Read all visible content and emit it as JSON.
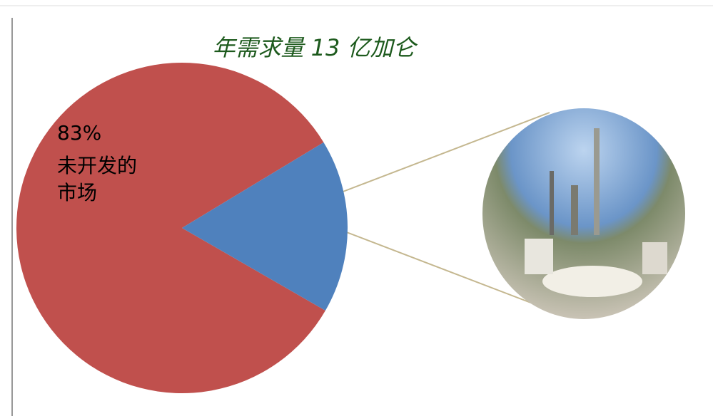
{
  "chart_data": {
    "type": "pie",
    "title": "年需求量 13 亿加仑",
    "categories": [
      "未开发的市场",
      null
    ],
    "values": [
      83,
      17
    ],
    "value_labels": [
      "83%",
      null
    ],
    "colors": [
      "#c0504d",
      "#4f81bd"
    ]
  }
}
